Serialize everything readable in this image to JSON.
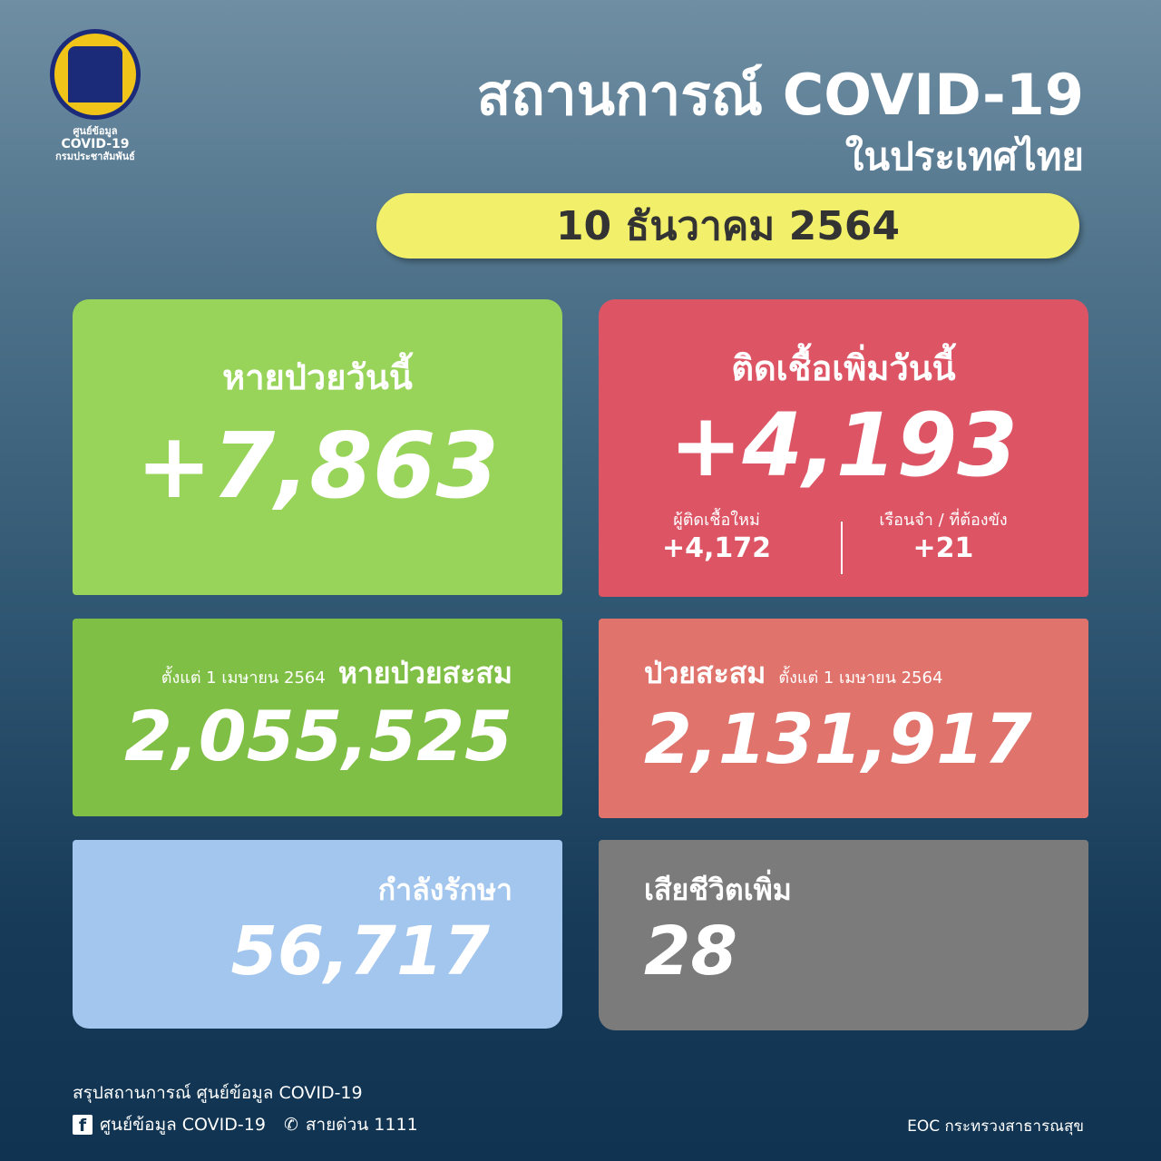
{
  "logo": {
    "line1": "ศูนย์ข้อมูล",
    "line2": "COVID-19",
    "line3": "กรมประชาสัมพันธ์"
  },
  "header": {
    "title": "สถานการณ์ COVID-19",
    "subtitle": "ในประเทศไทย",
    "date": "10 ธันวาคม 2564"
  },
  "recovered_today": {
    "label": "หายป่วยวันนี้",
    "value": "+7,863",
    "color": "#98d45a"
  },
  "new_cases_today": {
    "label": "ติดเชื้อเพิ่มวันนี้",
    "value": "+4,193",
    "color": "#dd5565",
    "breakdown": [
      {
        "label": "ผู้ติดเชื้อใหม่",
        "value": "+4,172"
      },
      {
        "label": "เรือนจำ / ที่ต้องขัง",
        "value": "+21"
      }
    ]
  },
  "recovered_total": {
    "since": "ตั้งแต่ 1 เมษายน 2564",
    "label": "หายป่วยสะสม",
    "value": "2,055,525",
    "color": "#80bf45"
  },
  "cases_total": {
    "label": "ป่วยสะสม",
    "since": "ตั้งแต่ 1 เมษายน 2564",
    "value": "2,131,917",
    "color": "#e0736b"
  },
  "in_treatment": {
    "label": "กำลังรักษา",
    "value": "56,717",
    "color": "#a3c6ee"
  },
  "deaths": {
    "label": "เสียชีวิตเพิ่ม",
    "value": "28",
    "color": "#7b7b7b"
  },
  "footer": {
    "summary": "สรุปสถานการณ์ ศูนย์ข้อมูล COVID-19",
    "facebook": "ศูนย์ข้อมูล COVID-19",
    "hotline": "สายด่วน 1111",
    "source": "EOC กระทรวงสาธารณสุข",
    "facebook_icon": "facebook-icon",
    "phone_icon": "phone-icon"
  }
}
